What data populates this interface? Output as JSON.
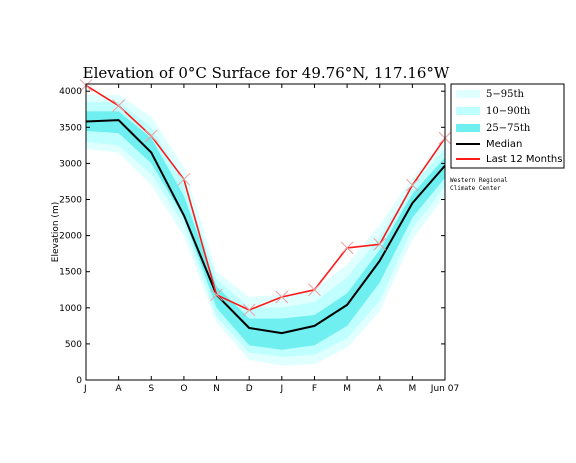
{
  "chart_data": {
    "type": "area",
    "title": "Elevation of 0°C Surface for 49.76°N, 117.16°W",
    "xlabel": "",
    "ylabel": "Elevation (m)",
    "categories": [
      "J",
      "A",
      "S",
      "O",
      "N",
      "D",
      "J",
      "F",
      "M",
      "A",
      "M",
      "Jun 07"
    ],
    "ylim": [
      0,
      4100
    ],
    "yticks": [
      0,
      500,
      1000,
      1500,
      2000,
      2500,
      3000,
      3500,
      4000
    ],
    "grid": false,
    "legend_position": "right",
    "bands": [
      {
        "name": "5−95th",
        "color": "#e0ffff",
        "lower": [
          3200,
          3150,
          2700,
          2000,
          800,
          280,
          200,
          220,
          450,
          950,
          1950,
          2550
        ],
        "upper": [
          3950,
          3950,
          3650,
          2950,
          1500,
          1150,
          1180,
          1250,
          1600,
          2150,
          2800,
          3300
        ]
      },
      {
        "name": "10−90th",
        "color": "#bfffff",
        "lower": [
          3300,
          3250,
          2850,
          2150,
          880,
          380,
          320,
          350,
          580,
          1100,
          2100,
          2680
        ],
        "upper": [
          3850,
          3850,
          3500,
          2750,
          1400,
          1000,
          1000,
          1080,
          1420,
          1980,
          2700,
          3200
        ]
      },
      {
        "name": "25−75th",
        "color": "#6fefef",
        "lower": [
          3450,
          3420,
          3000,
          2250,
          1000,
          480,
          420,
          480,
          750,
          1350,
          2250,
          2800
        ],
        "upper": [
          3720,
          3720,
          3350,
          2550,
          1300,
          850,
          850,
          900,
          1200,
          1800,
          2580,
          3080
        ]
      }
    ],
    "series": [
      {
        "name": "Median",
        "color": "#000000",
        "values": [
          3580,
          3600,
          3150,
          2280,
          1180,
          720,
          650,
          750,
          1040,
          1650,
          2450,
          2970
        ]
      },
      {
        "name": "Last 12 Months",
        "color": "#ff1a1a",
        "values": [
          4080,
          3800,
          3380,
          2780,
          1180,
          970,
          1150,
          1250,
          1830,
          1880,
          2700,
          3350
        ]
      }
    ],
    "annotation": "Western Regional\nClimate Center",
    "legend_entries": [
      "5−95th",
      "10−90th",
      "25−75th",
      "Median",
      "Last 12 Months"
    ]
  }
}
